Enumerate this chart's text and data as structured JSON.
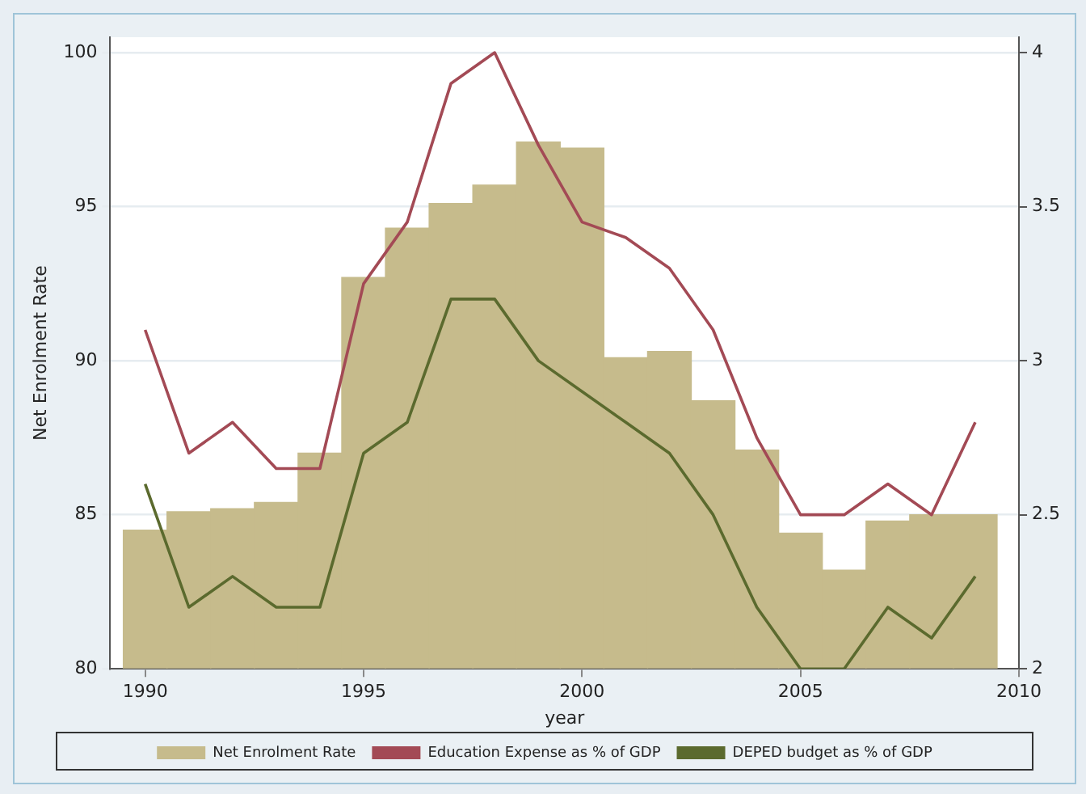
{
  "chart_data": {
    "type": "bar",
    "xlabel": "year",
    "ylabel": "Net Enrolment Rate",
    "x": [
      1990,
      1991,
      1992,
      1993,
      1994,
      1995,
      1996,
      1997,
      1998,
      1999,
      2000,
      2001,
      2002,
      2003,
      2004,
      2005,
      2006,
      2007,
      2008,
      2009
    ],
    "series": [
      {
        "name": "Net Enrolment Rate",
        "color": "#c6bb8c",
        "values": [
          84.5,
          85.1,
          85.2,
          85.4,
          87.0,
          92.7,
          94.3,
          95.1,
          95.7,
          97.1,
          96.9,
          90.1,
          90.3,
          88.7,
          87.1,
          84.4,
          83.2,
          84.8,
          85.0,
          85.0
        ]
      },
      {
        "name": "Education Expense as % of GDP",
        "type": "line",
        "axis": "y2",
        "color": "#a34a55",
        "values": [
          3.1,
          2.7,
          2.8,
          2.65,
          2.65,
          3.25,
          3.45,
          3.9,
          4.0,
          3.7,
          3.45,
          3.4,
          3.3,
          3.1,
          2.75,
          2.5,
          2.5,
          2.6,
          2.5,
          2.8
        ]
      },
      {
        "name": "DEPED budget as % of GDP",
        "type": "line",
        "axis": "y2",
        "color": "#5b6a2e",
        "values": [
          2.6,
          2.2,
          2.3,
          2.2,
          2.2,
          2.7,
          2.8,
          3.2,
          3.2,
          3.0,
          2.9,
          2.8,
          2.7,
          2.5,
          2.2,
          2.0,
          2.0,
          2.2,
          2.1,
          2.3
        ]
      }
    ],
    "xlim": [
      1989.2,
      2010
    ],
    "xticks": [
      1990,
      1995,
      2000,
      2005,
      2010
    ],
    "ylim": [
      80,
      100.5
    ],
    "yticks": [
      80,
      85,
      90,
      95,
      100
    ],
    "y2lim": [
      2,
      4.05
    ],
    "y2ticks": [
      2,
      2.5,
      3,
      3.5,
      4
    ],
    "grid": "y",
    "legend": "bottom",
    "marker": "none",
    "line_style": "solid"
  }
}
